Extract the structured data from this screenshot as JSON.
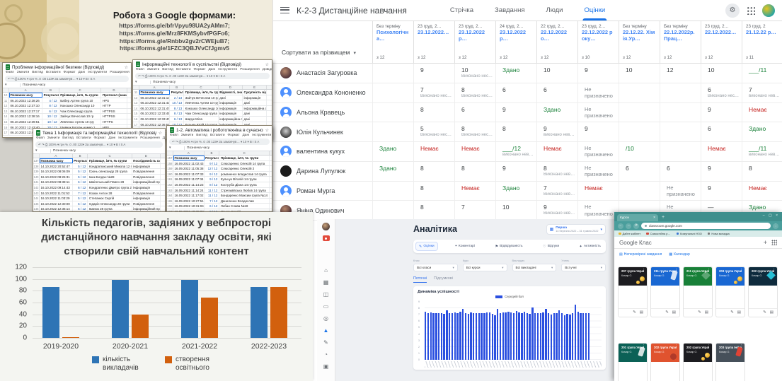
{
  "colors": {
    "accent_blue": "#1a73e8",
    "green": "#188038",
    "red": "#c5221f",
    "teal_browser": "#4a9e9c",
    "chart_blue": "#2e74b5",
    "chart_orange": "#d2600e",
    "analytics_blue": "#2b50e0"
  },
  "quote_card": {
    "title": "Робота з Google формами:",
    "links": [
      "https://forms.gle/bfrVpyu98UA2yAMm7;",
      "https://forms.gle/Mrz8FKMSybvfPGFo6;",
      "https://forms.gle/Rnbbv2gv2rCWEjuB7;",
      "https://forms.gle/1FZC3QBJVvCfJgmv5"
    ]
  },
  "sheets_ui": {
    "menu": [
      "Файл",
      "Змінити",
      "Вигляд",
      "Вставити",
      "Формат",
      "Дані",
      "Інструменти",
      "Розширення",
      "Довідка"
    ],
    "toolbar_text": "↶ ↷ ⎙  100% ▾   грн  %  .0  .00  123▾   За замовчув… ▾   10 ▾   B  I  S  A",
    "name_box": "▾"
  },
  "sheets": [
    {
      "title": "Проблеми інформаційної безпеки (Відповіді)",
      "row_start": 10,
      "headers": [
        "Позначка часу",
        "Результат",
        "Прізвище, ім'я, № групи",
        "Протокол (зашифрован"
      ],
      "rows": [
        [
          "06.10.2022 12:28:26",
          "4 / 12",
          "Бабер Артем група 10",
          "HPS"
        ],
        [
          "06.10.2022 12:37:10",
          "8 / 12",
          "Кокошко Олександр 10",
          "HTTP"
        ],
        [
          "06.10.2022 12:37:17",
          "6 / 12",
          "Чаж Олександр група",
          "HTTPSS"
        ],
        [
          "06.10.2022 12:38:16",
          "10 / 12",
          "Зайчук Вячеслав 10 гр",
          "HTTPSS"
        ],
        [
          "06.10.2022 12:39:51",
          "10 / 12",
          "Левченко Артем 10 гру",
          "HTTPS"
        ],
        [
          "06.10.2022 12:43:40",
          "10 / 12",
          "Шевчук Богдан номер 1",
          "HPS"
        ],
        [
          "06.10.2022 12:43:54",
          "10 / 12",
          "Шарук Міла",
          "HTTPS"
        ]
      ]
    },
    {
      "title": "Інформаційні технології в суспільстві (Відповіді)",
      "row_start": 11,
      "headers": [
        "Позначка часу",
        "Результат",
        "Прізвище, ім'я, № групи",
        "Відомості, знання, які",
        "Сукупність відомо"
      ],
      "rows": [
        [
          "06.10.2022 12:31:13",
          "2 / 13",
          "Зайчук Вячеслав 10 група",
          "дані",
          "інформація"
        ],
        [
          "06.10.2022 12:31:43",
          "10 / 13",
          "Левченко Артем 10 група",
          "інформація",
          "дані"
        ],
        [
          "06.10.2022 12:31:47",
          "8 / 13",
          "Кокошко Олександр 10",
          "інформація",
          "інформаційна сис"
        ],
        [
          "06.10.2022 12:33:45",
          "8 / 13",
          "Чаж Олександр група 10",
          "інформація",
          "дані"
        ],
        [
          "06.10.2022 12:33:40",
          "6 / 13",
          "Шарук Міла",
          "інформаційна система",
          "дані"
        ],
        [
          "06.10.2022 12:36:51",
          "10 / 13",
          "Кузьма Юрій 10 група",
          "інформація",
          "дані"
        ],
        [
          "06.10.2022 12:37:44",
          "4 / 13",
          "Мазун Сергій 10",
          "інформація",
          "дані"
        ],
        [
          "06.10.2022 12:40:46",
          "10 / 13",
          "Шевчук Богдан група ном",
          "інформація",
          "дані"
        ]
      ]
    },
    {
      "title": "Тема 1 Інформація та інформаційні технології (Відповіді)",
      "row_start": 137,
      "headers": [
        "Позначка часу",
        "Результат",
        "Прізвище, ім'я, № групи",
        "Послідовність сигналів"
      ],
      "rows": [
        [
          "14.10.2022 20:52:47",
          "5 / 12",
          "Кондратюкський Микола 12 гру",
          "інформація"
        ],
        [
          "16.10.2022 08:06:09",
          "5 / 12",
          "Гронь олександр 28 група",
          "Повідомлення"
        ],
        [
          "16.10.2022 08:26:31",
          "5 / 12",
          "Іжик Богдан №28",
          "Повідомлення"
        ],
        [
          "16.10.2022 08:38:11",
          "6 / 12",
          "Шмігельський Павло 28",
          "інформаційний проце"
        ],
        [
          "16.10.2022 09:14:43",
          "6 / 12",
          "Кондратенко Дмитро група 28",
          "інформація"
        ],
        [
          "16.10.2022 11:01:52",
          "7 / 12",
          "Козюк Антон 28",
          "Повідомлення"
        ],
        [
          "16.10.2022 11:03:29",
          "5 / 12",
          "Степанюк Сергій",
          "інформація"
        ],
        [
          "16.10.2022 12:30:00",
          "5 / 12",
          "Одарін Олександр 28 групи",
          "Повідомлення"
        ],
        [
          "16.10.2022 12:36:14",
          "6 / 12",
          "Іванюк 28 група",
          "інформаційний проце"
        ],
        [
          "16.10.2022 12:53:41",
          "5 / 12",
          "Кравченко Віктор 28група",
          "інформаційний проце"
        ],
        [
          "16.10.2022 13:08:14",
          "5 / 12",
          "Тютюнський Дмитро 28",
          "інформаційний проце"
        ],
        [
          "16.10.2022 19:08:11",
          "5 / 12",
          "Субін Андрій 28",
          "Шум"
        ]
      ]
    },
    {
      "title": "1-2. Автоматика і робототехніка в сучасному суспільстві. (В",
      "row_start": 157,
      "headers": [
        "Позначка часу",
        "Результат",
        "Прізвище, ім'я, № групи"
      ],
      "rows": [
        [
          "16.09.2022 11:02:43",
          "9 / 12",
          "Слюсаренко Олексій 14 група"
        ],
        [
          "16.09.2022 11:05:38",
          "12 / 12",
          "Слюсаренко Олексій 2"
        ],
        [
          "16.09.2022 11:07:33",
          "9 / 12",
          "романенко владислав 14 група"
        ],
        [
          "16.09.2022 11:07:34",
          "9 / 12",
          "Кульчук Віталій 14 групи"
        ],
        [
          "16.09.2022 11:14:23",
          "8 / 12",
          "Коструба Діана 14 група"
        ],
        [
          "16.09.2022 11:14:24",
          "11 / 12",
          "Стрельвівська Любов 14 група"
        ],
        [
          "16.09.2022 11:17:02",
          "11 / 12",
          "Бондаренко Максим група №14"
        ],
        [
          "16.09.2022 10:27:51",
          "7 / 12",
          "Даниленко Владислав"
        ],
        [
          "16.09.2022 10:31:04",
          "6 / 12",
          "Лобан Слава №18"
        ],
        [
          "16.09.2022 10:38:08",
          "9 / 12",
          "Данюк Сергій"
        ],
        [
          "16.09.2022 10:38:15",
          "9 / 12",
          "Ярошинський андрій"
        ]
      ]
    }
  ],
  "gradebook": {
    "window_title": "К-2-3 Дистанційне навчання",
    "tabs": [
      {
        "key": "stream",
        "label": "Стрічка"
      },
      {
        "key": "classwork",
        "label": "Завдання"
      },
      {
        "key": "people",
        "label": "Люди"
      },
      {
        "key": "grades",
        "label": "Оцінки",
        "active": true
      }
    ],
    "sort_label": "Сортувати за прізвищем",
    "columns": [
      {
        "date": "Без терміну",
        "title": "Психологічна…",
        "max": "з 12"
      },
      {
        "date": "23 груд. 2…",
        "title": "23.12.2022…",
        "max": "з 12"
      },
      {
        "date": "23 груд. 2…",
        "title": "23.12.2022р…",
        "max": "з 12"
      },
      {
        "date": "24 груд. 2…",
        "title": "23.12.2022 р…",
        "max": "з 12"
      },
      {
        "date": "22 груд. 2…",
        "title": "22.12.2022о…",
        "max": "з 12"
      },
      {
        "date": "23 груд. 2…",
        "title": "22.12.2022 року…",
        "max": "з 10"
      },
      {
        "date": "Без терміну",
        "title": "22.12.22. Хімія.Ур…",
        "max": "з 12"
      },
      {
        "date": "Без терміну",
        "title": "22.12.2022р.Прац…",
        "max": "з 12"
      },
      {
        "date": "23 груд. 2…",
        "title": "22.12.2022…",
        "max": "з 12"
      },
      {
        "date": "23 груд. 2",
        "title": "21.12.22 р…",
        "max": "з 11"
      }
    ],
    "students": [
      {
        "name": "Анастасія Загуровка",
        "avatar": "photo",
        "grades": [
          "",
          "9",
          {
            "t": "10",
            "s": "Виконано нес…"
          },
          {
            "t": "Здано",
            "c": "g"
          },
          "10",
          "9",
          "10",
          "12",
          "10",
          {
            "t": "___/11",
            "c": "g"
          }
        ]
      },
      {
        "name": "Олександра Кононенко",
        "avatar": "blue",
        "grades": [
          "",
          {
            "t": "7",
            "s": "Виконано нес…"
          },
          {
            "t": "8",
            "s": "Виконано нес…"
          },
          "6",
          "6",
          {
            "t": "Не призначено",
            "c": "m"
          },
          "",
          "",
          {
            "t": "6",
            "s": "Виконано нес…"
          },
          {
            "t": "7",
            "s": "виконано нев…"
          }
        ]
      },
      {
        "name": "Альона Кравець",
        "avatar": "blue",
        "grades": [
          "",
          "8",
          "6",
          "9",
          {
            "t": "Здано",
            "c": "g"
          },
          {
            "t": "Не призначено",
            "c": "m"
          },
          "",
          "",
          "9",
          {
            "t": "Немає",
            "c": "r"
          }
        ]
      },
      {
        "name": "Юлія Кульчинек",
        "avatar": "photo2",
        "grades": [
          "",
          {
            "t": "5",
            "s": "Виконано нес…"
          },
          {
            "t": "8",
            "s": "Виконано нес…"
          },
          "8",
          {
            "t": "9",
            "s": "виконано нев…"
          },
          "9",
          "",
          "",
          "6",
          {
            "t": "Здано",
            "c": "g"
          }
        ]
      },
      {
        "name": "валентина кукух",
        "avatar": "blue",
        "grades": [
          {
            "t": "Здано",
            "c": "g"
          },
          {
            "t": "Немає",
            "c": "r"
          },
          {
            "t": "Немає",
            "c": "r"
          },
          {
            "t": "___/12",
            "s": "виконано нев…",
            "c": "g"
          },
          {
            "t": "Немає",
            "c": "r"
          },
          {
            "t": "Не призначено",
            "c": "m"
          },
          {
            "t": "/10",
            "c": "g"
          },
          "",
          {
            "t": "Немає",
            "c": "r"
          },
          {
            "t": "___/11",
            "s": "виконано нев…",
            "c": "g"
          }
        ]
      },
      {
        "name": "Дарина Лупулюк",
        "avatar": "black",
        "grades": [
          {
            "t": "Здано",
            "c": "g"
          },
          "8",
          "8",
          "9",
          {
            "t": "8",
            "s": "Виконано нев…"
          },
          {
            "t": "Не призначено",
            "c": "m"
          },
          "6",
          "6",
          "9",
          "8"
        ]
      },
      {
        "name": "Роман Мурга",
        "avatar": "blue",
        "grades": [
          "",
          "8",
          {
            "t": "Немає",
            "c": "r"
          },
          {
            "t": "Здано",
            "c": "g"
          },
          {
            "t": "7",
            "s": "Виконано нев…"
          },
          {
            "t": "Немає",
            "c": "r"
          },
          "",
          {
            "t": "Не призначено",
            "c": "m"
          },
          "9",
          {
            "t": "Немає",
            "c": "r"
          }
        ]
      },
      {
        "name": "Яніна Одинович",
        "avatar": "photo",
        "grades": [
          "",
          "8",
          "7",
          "10",
          {
            "t": "9",
            "s": "Виконано нев…"
          },
          {
            "t": "Не призначено",
            "c": "m"
          },
          "",
          {
            "t": "Не призначено",
            "c": "m"
          },
          "—",
          {
            "t": "Здано",
            "c": "g"
          }
        ]
      }
    ]
  },
  "chart_data": [
    {
      "type": "bar",
      "title": "Кількість педагогів, задіяних у вебпросторі дистанційного навчання закладу освіти, які створили свій навчальний контент",
      "categories": [
        "2019-2020",
        "2020-2021",
        "2021-2022",
        "2022-2023"
      ],
      "series": [
        {
          "name": "кількість викладачів",
          "color": "#2e74b5",
          "values": [
            87,
            98,
            98,
            87
          ]
        },
        {
          "name": "створення освітнього",
          "color": "#d2600e",
          "values": [
            1,
            40,
            68,
            87
          ]
        }
      ],
      "ylim": [
        0,
        120
      ],
      "yticks": [
        0,
        20,
        40,
        60,
        80,
        100,
        120
      ],
      "grid": true,
      "legend_position": "bottom"
    },
    {
      "type": "bar",
      "title": "Динаміка успішності",
      "series": [
        {
          "name": "Середній бал",
          "color": "#2b50e0",
          "values": [
            7.5,
            7.3,
            7.4,
            7.3,
            7.2,
            7.3,
            7.2,
            7.1,
            7.7,
            7.3,
            7.2,
            7.4,
            7.3,
            7.5,
            7.9,
            7.2,
            7.1,
            7.4,
            7.3,
            7.3,
            7.2,
            7.3,
            7.2,
            7.4,
            7.4,
            7.1,
            6.9,
            7.9,
            7.3,
            7.4,
            7.4,
            7.5,
            7.4,
            7.3,
            7.6,
            7.4,
            7.3,
            7.5,
            7.2,
            7.1,
            8.1,
            7.3,
            7.2,
            7.2,
            7.4,
            7.9,
            7.3,
            7.0,
            7.2,
            7.3,
            7.7,
            7.2,
            6.9,
            7.1,
            7.0,
            7.2,
            8.6,
            7.5,
            7.3,
            7.3,
            7.2,
            7.3
          ]
        }
      ],
      "ylim": [
        0,
        9
      ],
      "grid": true,
      "legend_position": "top"
    }
  ],
  "analytics": {
    "title": "Аналітика",
    "period": {
      "name": "Перша",
      "range": "14 березня 2022 – 31 травня 2022"
    },
    "tabs": [
      {
        "key": "grades",
        "label": "Оцінки",
        "active": true
      },
      {
        "key": "comments",
        "label": "Коментарі"
      },
      {
        "key": "attendance",
        "label": "Відвідуваність"
      },
      {
        "key": "feedback",
        "label": "Відгуки"
      },
      {
        "key": "activity",
        "label": "Активність"
      }
    ],
    "filters": [
      {
        "label": "Клас",
        "value": "Всі класи"
      },
      {
        "label": "Курс",
        "value": "Всі курси"
      },
      {
        "label": "Викладач",
        "value": "Всі викладачі"
      },
      {
        "label": "Учень",
        "value": "Всі учні"
      }
    ],
    "subtabs": [
      {
        "label": "Поточні",
        "active": true
      },
      {
        "label": "Підсумкові"
      }
    ],
    "chart_heading": "Динаміка успішності",
    "legend": "Середній бал"
  },
  "sidebar_icons": [
    "home",
    "modules",
    "people",
    "window",
    "settings",
    "likes",
    "edit",
    "history",
    "stop"
  ],
  "browser": {
    "tab": "Курси",
    "url": "classroom.google.com",
    "bookmarks": [
      {
        "label": "Дайте кабінет",
        "color": "#e8b62c"
      },
      {
        "label": "Самостійна р…",
        "color": "#d24b3e"
      },
      {
        "label": "Комунальні НЗО",
        "color": "#3b76d2"
      },
      {
        "label": "Нова вкладка",
        "color": "#7a7a7a"
      }
    ],
    "app_title": "Google Клас",
    "links": [
      "Неперевірені завдання",
      "Календар"
    ],
    "cards_row1": [
      {
        "title": "207 група Українська…",
        "subtitle": "Комар О.",
        "color": "#1c1c20",
        "deco": "coins"
      },
      {
        "title": "211 група Українська…",
        "subtitle": "Комар О.",
        "color": "#1967d2",
        "deco": "phone"
      },
      {
        "title": "211 група Українська",
        "subtitle": "Комар О.",
        "color": "#188038",
        "deco": "diamond"
      },
      {
        "title": "203 група Українська…",
        "subtitle": "Комар О.",
        "color": "#1967d2",
        "deco": "coins"
      },
      {
        "title": "202 група Українська…",
        "subtitle": "Комар О.",
        "color": "#0f2b3d",
        "deco": "diamond-teal",
        "underline": true
      }
    ],
    "cards_row2": [
      {
        "title": "201 група Українська…",
        "subtitle": "Комар О.",
        "color": "#0b6156",
        "deco": "phone"
      },
      {
        "title": "202 група Українська…",
        "subtitle": "Комар О.",
        "color": "#e0532f",
        "deco": "dot"
      },
      {
        "title": "202 група Українська…",
        "subtitle": "Комар О.",
        "color": "#1c1c20",
        "deco": "coins"
      },
      {
        "title": "203 група Інформаці…",
        "subtitle": "Комар О.",
        "color": "#46505a",
        "deco": "phone-red"
      }
    ]
  }
}
